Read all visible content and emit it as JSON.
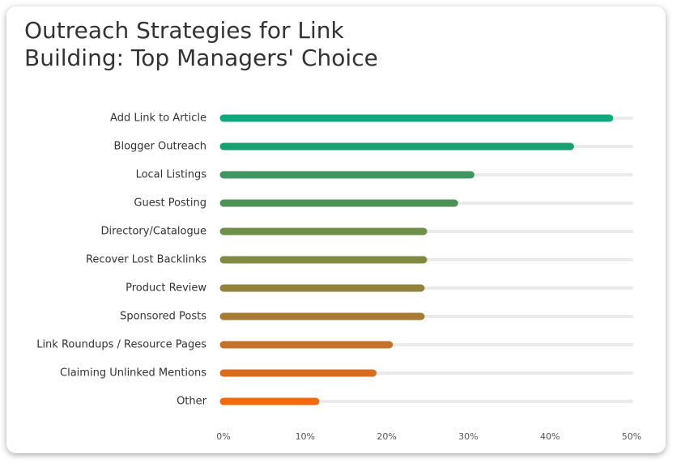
{
  "chart_data": {
    "type": "hbar",
    "title": [
      "Outreach Strategies for Link",
      "Building: Top Managers' Choice"
    ],
    "categories": [
      "Add Link to Article",
      "Blogger Outreach",
      "Local Listings",
      "Guest Posting",
      "Directory/Catalogue",
      "Recover Lost Backlinks",
      "Product Review",
      "Sponsored Posts",
      "Link Roundups / Resource Pages",
      "Claiming Unlinked Mentions",
      "Other"
    ],
    "values": [
      47.3,
      42.5,
      30.3,
      28.3,
      24.5,
      24.5,
      24.2,
      24.2,
      20.3,
      18.3,
      11.3
    ],
    "colors": [
      "#10a97e",
      "#1a9f6e",
      "#3f9660",
      "#4e9356",
      "#6e8f4a",
      "#7f8a40",
      "#93833a",
      "#a77b31",
      "#c4722a",
      "#d86d1e",
      "#f26a0e"
    ],
    "xlim": [
      0,
      50
    ],
    "xticks": [
      {
        "value": 0,
        "label": "0%"
      },
      {
        "value": 10,
        "label": "10%"
      },
      {
        "value": 20,
        "label": "20%"
      },
      {
        "value": 30,
        "label": "30%"
      },
      {
        "value": 40,
        "label": "40%"
      },
      {
        "value": 50,
        "label": "50%"
      }
    ]
  }
}
